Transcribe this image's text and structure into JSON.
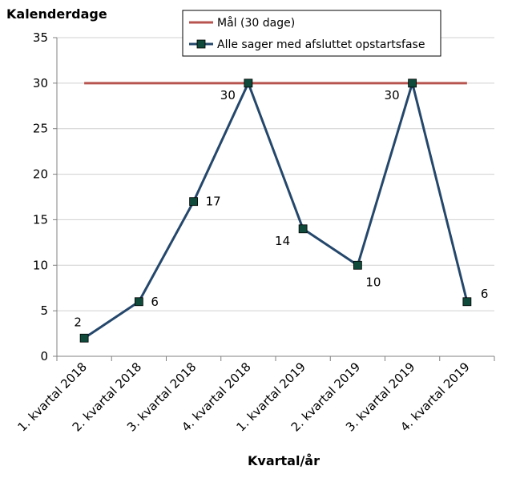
{
  "chart_data": {
    "type": "line",
    "ylabel": "Kalenderdage",
    "xlabel": "Kvartal/år",
    "categories": [
      "1. kvartal 2018",
      "2. kvartal 2018",
      "3. kvartal 2018",
      "4. kvartal 2018",
      "1. kvartal 2019",
      "2. kvartal 2019",
      "3. kvartal 2019",
      "4. kvartal 2019"
    ],
    "ylim": [
      0,
      35
    ],
    "yticks": [
      0,
      5,
      10,
      15,
      20,
      25,
      30,
      35
    ],
    "ytick_labels": [
      "0",
      "5",
      "10",
      "15",
      "20",
      "25",
      "30",
      "35"
    ],
    "grid": true,
    "legend_position": "top",
    "series": [
      {
        "name": "Mål (30 dage)",
        "values": [
          30,
          30,
          30,
          30,
          30,
          30,
          30,
          30
        ],
        "color": "#b85450",
        "marker": "none"
      },
      {
        "name": "Alle sager med afsluttet opstartsfase",
        "values": [
          2,
          6,
          17,
          30,
          14,
          10,
          30,
          6
        ],
        "color": "#24476b",
        "marker": "square",
        "marker_color": "#0f4a3a",
        "data_labels": [
          "2",
          "6",
          "17",
          "30",
          "14",
          "10",
          "30",
          "6"
        ]
      }
    ]
  }
}
